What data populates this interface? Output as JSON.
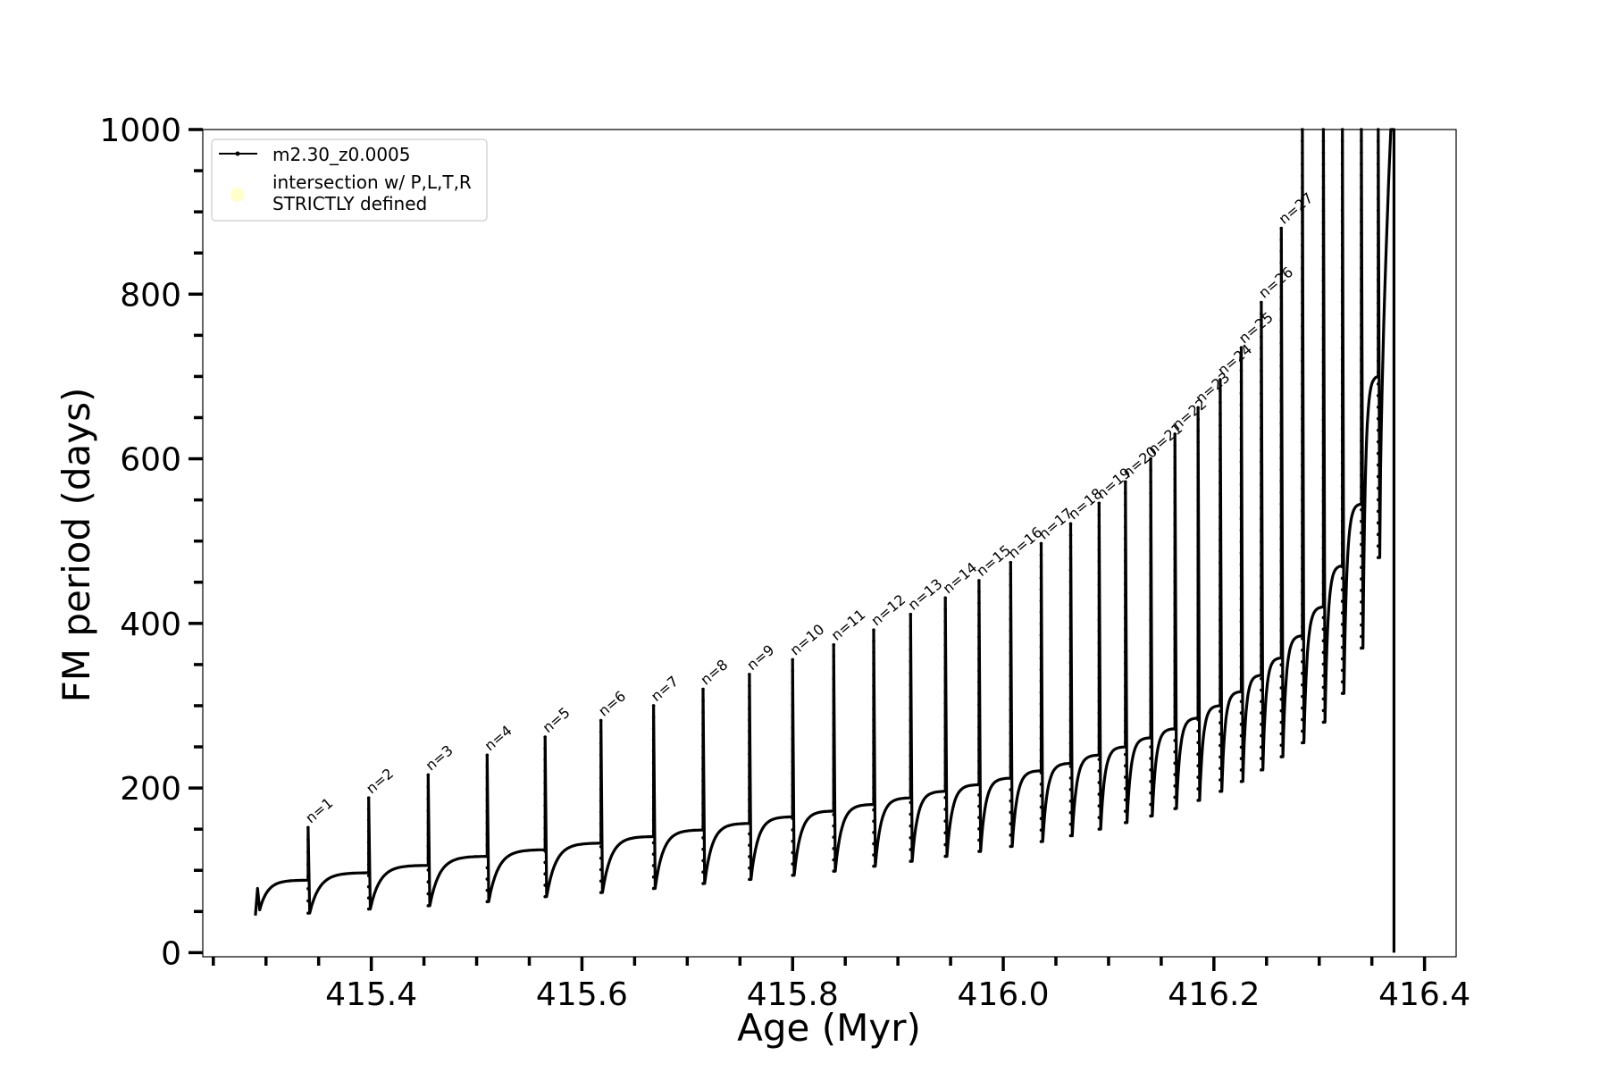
{
  "chart_data": {
    "type": "line",
    "xlabel": "Age (Myr)",
    "ylabel": "FM period (days)",
    "xlim": [
      415.24,
      416.43
    ],
    "ylim": [
      -5,
      1000
    ],
    "x_ticks": [
      415.4,
      415.6,
      415.8,
      416.0,
      416.2,
      416.4
    ],
    "x_tick_labels": [
      "415.4",
      "415.6",
      "415.8",
      "416.0",
      "416.2",
      "416.4"
    ],
    "y_ticks": [
      0,
      200,
      400,
      600,
      800,
      1000
    ],
    "y_tick_labels": [
      "0",
      "200",
      "400",
      "600",
      "800",
      "1000"
    ],
    "legend": {
      "placement": "top-left",
      "entries": [
        {
          "label": "m2.30_z0.0005",
          "marker": "line-dot",
          "color": "#000000"
        },
        {
          "label_line1": "intersection w/ P,L,T,R",
          "label_line2": "STRICTLY defined",
          "marker": "circle",
          "color": "#ffffcc"
        }
      ]
    },
    "series": [
      {
        "name": "m2.30_z0.0005",
        "color": "#000000",
        "start_age": 415.29,
        "end_age": 416.37,
        "pulses": [
          {
            "n": "n=1",
            "age": 415.34,
            "peak": 152,
            "base": 88,
            "min": 48
          },
          {
            "n": "n=2",
            "age": 415.3975,
            "peak": 188,
            "base": 97,
            "min": 53
          },
          {
            "n": "n=3",
            "age": 415.454,
            "peak": 216,
            "base": 106,
            "min": 57
          },
          {
            "n": "n=4",
            "age": 415.51,
            "peak": 240,
            "base": 117,
            "min": 62
          },
          {
            "n": "n=5",
            "age": 415.565,
            "peak": 262,
            "base": 125,
            "min": 68
          },
          {
            "n": "n=6",
            "age": 415.618,
            "peak": 282,
            "base": 133,
            "min": 73
          },
          {
            "n": "n=7",
            "age": 415.668,
            "peak": 300,
            "base": 141,
            "min": 78
          },
          {
            "n": "n=8",
            "age": 415.715,
            "peak": 320,
            "base": 149,
            "min": 84
          },
          {
            "n": "n=9",
            "age": 415.759,
            "peak": 338,
            "base": 157,
            "min": 89
          },
          {
            "n": "n=10",
            "age": 415.8,
            "peak": 356,
            "base": 165,
            "min": 94
          },
          {
            "n": "n=11",
            "age": 415.839,
            "peak": 374,
            "base": 172,
            "min": 99
          },
          {
            "n": "n=12",
            "age": 415.877,
            "peak": 392,
            "base": 180,
            "min": 105
          },
          {
            "n": "n=13",
            "age": 415.912,
            "peak": 411,
            "base": 188,
            "min": 111
          },
          {
            "n": "n=14",
            "age": 415.945,
            "peak": 431,
            "base": 196,
            "min": 117
          },
          {
            "n": "n=15",
            "age": 415.977,
            "peak": 452,
            "base": 204,
            "min": 123
          },
          {
            "n": "n=16",
            "age": 416.007,
            "peak": 474,
            "base": 212,
            "min": 129
          },
          {
            "n": "n=17",
            "age": 416.036,
            "peak": 497,
            "base": 221,
            "min": 135
          },
          {
            "n": "n=18",
            "age": 416.064,
            "peak": 521,
            "base": 230,
            "min": 142
          },
          {
            "n": "n=19",
            "age": 416.091,
            "peak": 546,
            "base": 240,
            "min": 150
          },
          {
            "n": "n=20",
            "age": 416.116,
            "peak": 572,
            "base": 250,
            "min": 158
          },
          {
            "n": "n=21",
            "age": 416.14,
            "peak": 600,
            "base": 261,
            "min": 166
          },
          {
            "n": "n=22",
            "age": 416.163,
            "peak": 630,
            "base": 272,
            "min": 175
          },
          {
            "n": "n=23",
            "age": 416.185,
            "peak": 662,
            "base": 285,
            "min": 185
          },
          {
            "n": "n=24",
            "age": 416.206,
            "peak": 696,
            "base": 300,
            "min": 196
          },
          {
            "n": "n=25",
            "age": 416.226,
            "peak": 735,
            "base": 317,
            "min": 208
          },
          {
            "n": "n=26",
            "age": 416.245,
            "peak": 790,
            "base": 337,
            "min": 222
          },
          {
            "n": "n=27",
            "age": 416.264,
            "peak": 880,
            "base": 358,
            "min": 238
          },
          {
            "n": "",
            "age": 416.284,
            "peak": 1000,
            "base": 385,
            "min": 255
          },
          {
            "n": "",
            "age": 416.304,
            "peak": 1000,
            "base": 420,
            "min": 280
          },
          {
            "n": "",
            "age": 416.322,
            "peak": 1000,
            "base": 470,
            "min": 315
          },
          {
            "n": "",
            "age": 416.34,
            "peak": 1000,
            "base": 545,
            "min": 370
          },
          {
            "n": "",
            "age": 416.356,
            "peak": 1000,
            "base": 700,
            "min": 480
          }
        ],
        "final_drop": {
          "age": 416.371,
          "top": 1000,
          "bottom": 0
        }
      }
    ]
  }
}
